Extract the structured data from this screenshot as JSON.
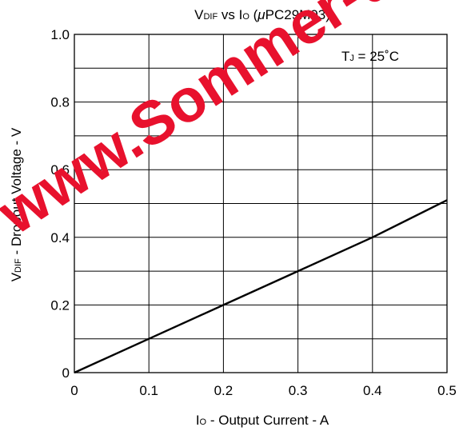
{
  "chart_data": {
    "type": "line",
    "title": {
      "main": "V",
      "main_sub": "DIF",
      "vs": " vs I",
      "vs_sub": "O",
      "paren": " (",
      "mu": "μ",
      "part": "PC29M03)"
    },
    "xlabel": {
      "main": "I",
      "sub": "O",
      "rest": " - Output Current - A"
    },
    "ylabel": {
      "main": "V",
      "sub": "DIF",
      "rest": " - Dropout Voltage - V"
    },
    "annotation": {
      "main": "T",
      "sub": "J",
      "rest": " = 25˚C"
    },
    "xlim": [
      0,
      0.5
    ],
    "ylim": [
      0,
      1.0
    ],
    "x_ticks": [
      "0",
      "0.1",
      "0.2",
      "0.3",
      "0.4",
      "0.5"
    ],
    "x_tick_values": [
      0,
      0.1,
      0.2,
      0.3,
      0.4,
      0.5
    ],
    "y_ticks": [
      "0",
      "0.2",
      "0.4",
      "0.6",
      "0.8",
      "1.0"
    ],
    "y_tick_values": [
      0,
      0.2,
      0.4,
      0.6,
      0.8,
      1.0
    ],
    "grid": true,
    "x_grid_step": 0.1,
    "y_grid_step": 0.1,
    "series": [
      {
        "x": [
          0,
          0.1,
          0.2,
          0.3,
          0.4,
          0.5
        ],
        "y": [
          0,
          0.1,
          0.2,
          0.3,
          0.4,
          0.51
        ]
      }
    ],
    "watermark": "www.Sommer-design.de",
    "colors": {
      "line": "#000000",
      "grid": "#000000",
      "watermark": "#e8112d"
    }
  }
}
